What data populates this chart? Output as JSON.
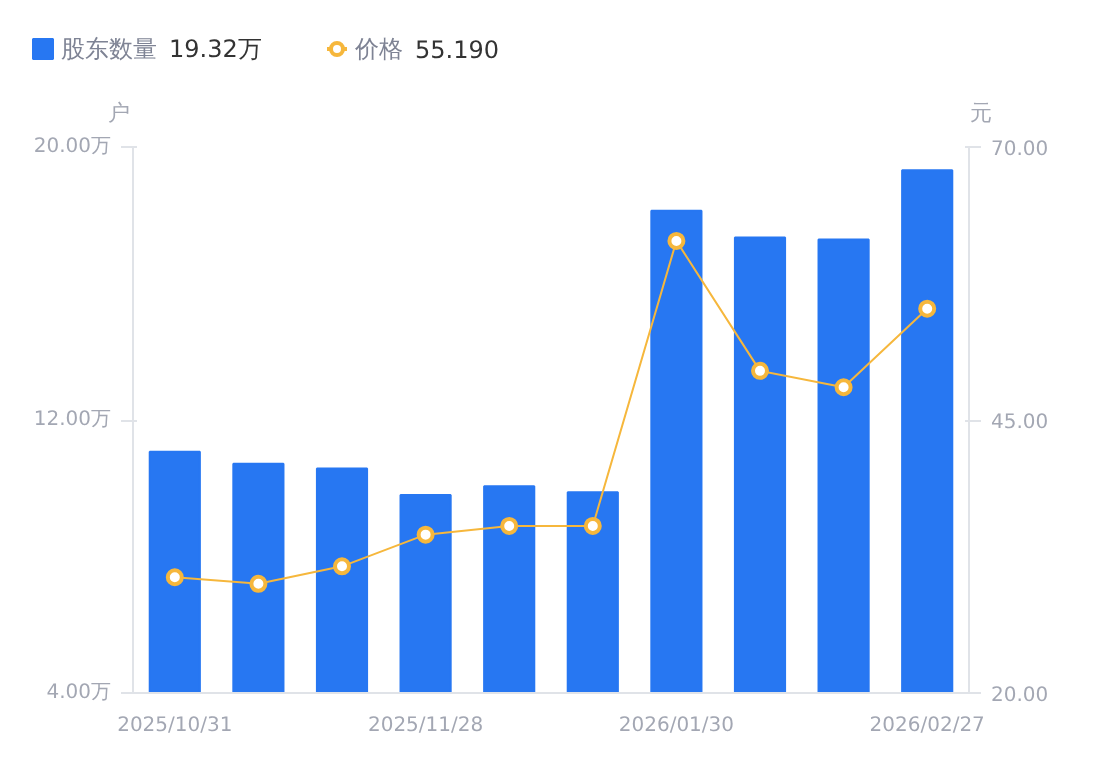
{
  "chart_data": {
    "type": "bar",
    "categories": [
      "2025/10/31",
      null,
      null,
      "2025/11/28",
      null,
      null,
      "2026/01/30",
      null,
      null,
      "2026/02/27"
    ],
    "series": [
      {
        "name": "股东数量",
        "color": "#2777f2",
        "values": [
          11.07,
          10.72,
          10.58,
          9.8,
          10.06,
          9.88,
          18.13,
          17.35,
          17.29,
          19.32
        ]
      },
      {
        "name": "价格",
        "type": "line",
        "axis": "y2",
        "color": "#f6b73c",
        "marker": "circle",
        "values": [
          30.6,
          30.0,
          31.6,
          34.5,
          35.3,
          35.3,
          61.4,
          49.5,
          48.0,
          55.19
        ]
      }
    ],
    "annotations": [
      "19.32万",
      "55.190"
    ],
    "ylabel": "户",
    "y2label": "元",
    "ylim": [
      4,
      20
    ],
    "yticks": [
      {
        "value": 4,
        "label": "4.00万"
      },
      {
        "value": 12,
        "label": "12.00万"
      },
      {
        "value": 20,
        "label": "20.00万"
      }
    ],
    "y2lim": [
      20,
      70
    ],
    "y2ticks": [
      {
        "value": 20,
        "label": "20.00"
      },
      {
        "value": 45,
        "label": "45.00"
      },
      {
        "value": 70,
        "label": "70.00"
      }
    ],
    "legend": "top left",
    "grid": false
  }
}
